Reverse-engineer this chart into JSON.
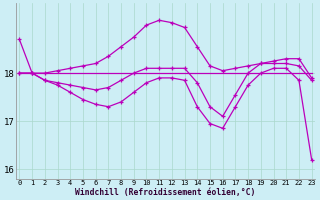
{
  "xlabel": "Windchill (Refroidissement éolien,°C)",
  "background_color": "#cdeef5",
  "line_color": "#bb00bb",
  "xlim": [
    -0.3,
    23.3
  ],
  "ylim": [
    15.8,
    19.45
  ],
  "yticks": [
    16,
    17,
    18
  ],
  "xticks": [
    0,
    1,
    2,
    3,
    4,
    5,
    6,
    7,
    8,
    9,
    10,
    11,
    12,
    13,
    14,
    15,
    16,
    17,
    18,
    19,
    20,
    21,
    22,
    23
  ],
  "line_flat": [
    18.0,
    18.0,
    18.0,
    18.0,
    18.0,
    18.0,
    18.0,
    18.0,
    18.0,
    18.0,
    18.0,
    18.0,
    18.0,
    18.0,
    18.0,
    18.0,
    18.0,
    18.0,
    18.0,
    18.0,
    18.0,
    18.0,
    18.0,
    18.0
  ],
  "line_up": [
    18.7,
    18.0,
    18.0,
    18.05,
    18.1,
    18.15,
    18.2,
    18.35,
    18.55,
    18.75,
    19.0,
    19.1,
    19.05,
    18.95,
    18.55,
    18.15,
    18.05,
    18.1,
    18.15,
    18.2,
    18.25,
    18.3,
    18.3,
    17.9
  ],
  "line_mid": [
    18.0,
    18.0,
    17.85,
    17.8,
    17.75,
    17.7,
    17.65,
    17.7,
    17.85,
    18.0,
    18.1,
    18.1,
    18.1,
    18.1,
    17.8,
    17.3,
    17.1,
    17.55,
    18.0,
    18.2,
    18.2,
    18.2,
    18.15,
    17.85
  ],
  "line_down": [
    18.0,
    18.0,
    17.85,
    17.75,
    17.6,
    17.45,
    17.35,
    17.3,
    17.4,
    17.6,
    17.8,
    17.9,
    17.9,
    17.85,
    17.3,
    16.95,
    16.85,
    17.3,
    17.75,
    18.0,
    18.1,
    18.1,
    17.85,
    16.2
  ],
  "grid_color": "#aad8cc"
}
